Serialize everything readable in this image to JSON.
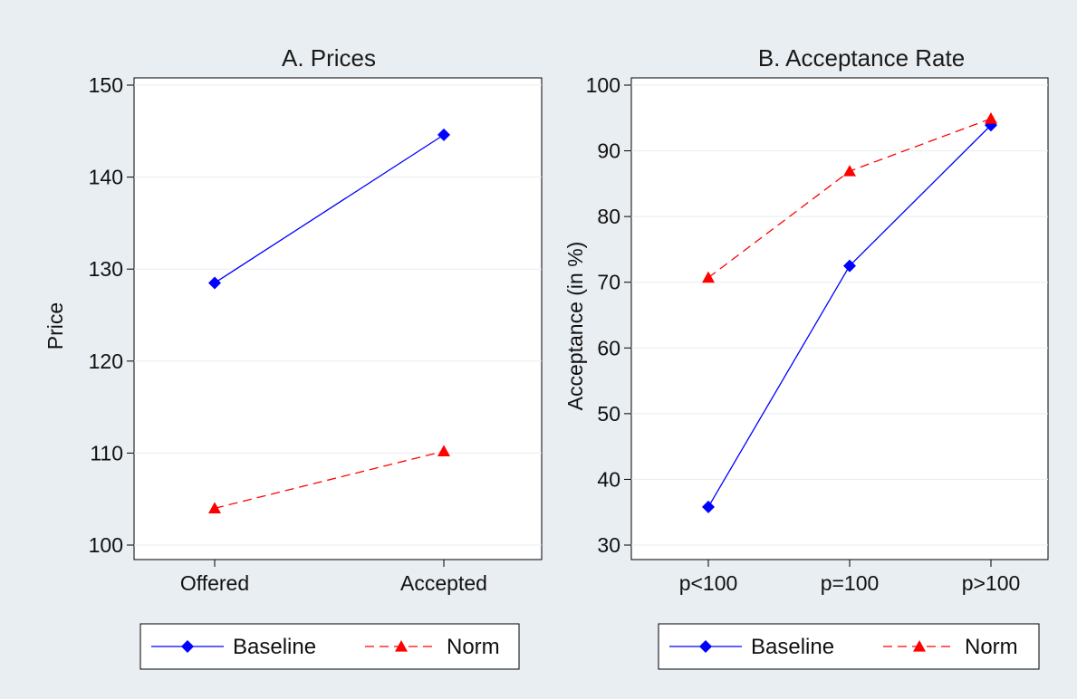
{
  "colors": {
    "outer_background": "#e9eef2",
    "plot_background": "#ffffff",
    "grid": "#e8ecef",
    "baseline": "#0000ff",
    "norm": "#ff0000"
  },
  "chart_data": [
    {
      "type": "line",
      "title": "A. Prices",
      "xlabel": "",
      "ylabel": "Price",
      "categories": [
        "Offered",
        "Accepted"
      ],
      "ylim": [
        100,
        150
      ],
      "yticks": [
        100,
        110,
        120,
        130,
        140,
        150
      ],
      "grid": true,
      "series": [
        {
          "name": "Baseline",
          "values": [
            128.5,
            144.6
          ],
          "marker": "diamond",
          "line_style": "solid",
          "color": "#0000ff"
        },
        {
          "name": "Norm",
          "values": [
            104.0,
            110.2
          ],
          "marker": "triangle",
          "line_style": "dashed",
          "color": "#ff0000"
        }
      ],
      "legend": {
        "placement": "bottom",
        "entries": [
          "Baseline",
          "Norm"
        ]
      }
    },
    {
      "type": "line",
      "title": "B. Acceptance Rate",
      "xlabel": "",
      "ylabel": "Acceptance (in %)",
      "categories": [
        "p<100",
        "p=100",
        "p>100"
      ],
      "ylim": [
        30,
        100
      ],
      "yticks": [
        30,
        40,
        50,
        60,
        70,
        80,
        90,
        100
      ],
      "grid": true,
      "series": [
        {
          "name": "Baseline",
          "values": [
            35.8,
            72.5,
            93.9
          ],
          "marker": "diamond",
          "line_style": "solid",
          "color": "#0000ff"
        },
        {
          "name": "Norm",
          "values": [
            70.7,
            86.9,
            94.9
          ],
          "marker": "triangle",
          "line_style": "dashed",
          "color": "#ff0000"
        }
      ],
      "legend": {
        "placement": "bottom",
        "entries": [
          "Baseline",
          "Norm"
        ]
      }
    }
  ]
}
